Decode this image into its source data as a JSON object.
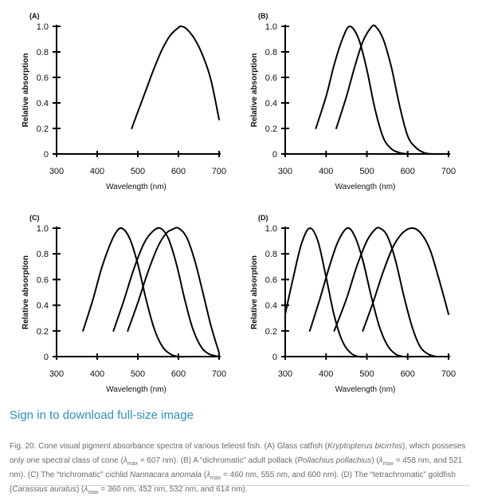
{
  "chart_data": [
    {
      "panel_label": "(A)",
      "type": "line",
      "xlabel": "Wavelength (nm)",
      "ylabel": "Relative absorption",
      "xlim": [
        300,
        700
      ],
      "ylim": [
        0,
        1.0
      ],
      "xticks": [
        "300",
        "400",
        "500",
        "600",
        "700"
      ],
      "yticks": [
        "0",
        "0.2",
        "0.4",
        "0.6",
        "0.8",
        "1.0"
      ],
      "series": [
        {
          "lambda_max": 607,
          "x": [
            485,
            500,
            520,
            540,
            560,
            580,
            600,
            607,
            620,
            640,
            660,
            680,
            700
          ],
          "y": [
            0.2,
            0.33,
            0.5,
            0.67,
            0.82,
            0.93,
            0.99,
            1.0,
            0.98,
            0.9,
            0.77,
            0.58,
            0.27
          ]
        }
      ]
    },
    {
      "panel_label": "(B)",
      "type": "line",
      "xlabel": "Wavelength (nm)",
      "ylabel": "Relative absorption",
      "xlim": [
        300,
        700
      ],
      "ylim": [
        0,
        1.0
      ],
      "xticks": [
        "300",
        "400",
        "500",
        "600",
        "700"
      ],
      "yticks": [
        "0",
        "0.2",
        "0.4",
        "0.6",
        "0.8",
        "1.0"
      ],
      "series": [
        {
          "lambda_max": 458,
          "x": [
            375,
            400,
            420,
            440,
            458,
            480,
            500,
            520,
            540,
            560,
            580,
            600
          ],
          "y": [
            0.2,
            0.45,
            0.7,
            0.9,
            1.0,
            0.9,
            0.66,
            0.35,
            0.13,
            0.04,
            0.01,
            0.0
          ]
        },
        {
          "lambda_max": 521,
          "x": [
            425,
            450,
            470,
            490,
            510,
            521,
            540,
            560,
            580,
            600,
            620,
            640,
            660,
            680
          ],
          "y": [
            0.2,
            0.45,
            0.68,
            0.88,
            0.99,
            1.0,
            0.9,
            0.68,
            0.38,
            0.14,
            0.05,
            0.01,
            0.0,
            0.0
          ]
        }
      ]
    },
    {
      "panel_label": "(C)",
      "type": "line",
      "xlabel": "Wavelength (nm)",
      "ylabel": "Relative absorption",
      "xlim": [
        300,
        700
      ],
      "ylim": [
        0,
        1.0
      ],
      "xticks": [
        "300",
        "400",
        "500",
        "600",
        "700"
      ],
      "yticks": [
        "0",
        "0.2",
        "0.4",
        "0.6",
        "0.8",
        "1.0"
      ],
      "series": [
        {
          "lambda_max": 460,
          "x": [
            365,
            390,
            410,
            430,
            445,
            460,
            480,
            500,
            520,
            540,
            560,
            580,
            600,
            620
          ],
          "y": [
            0.2,
            0.45,
            0.68,
            0.86,
            0.96,
            1.0,
            0.92,
            0.72,
            0.45,
            0.22,
            0.08,
            0.02,
            0.0,
            0.0
          ]
        },
        {
          "lambda_max": 555,
          "x": [
            440,
            465,
            490,
            515,
            535,
            555,
            575,
            595,
            615,
            635,
            655,
            675,
            700
          ],
          "y": [
            0.2,
            0.43,
            0.68,
            0.88,
            0.97,
            1.0,
            0.92,
            0.72,
            0.45,
            0.22,
            0.08,
            0.02,
            0.0
          ]
        },
        {
          "lambda_max": 600,
          "x": [
            475,
            500,
            525,
            550,
            570,
            585,
            600,
            620,
            640,
            660,
            680,
            700
          ],
          "y": [
            0.2,
            0.42,
            0.66,
            0.86,
            0.96,
            0.99,
            1.0,
            0.93,
            0.75,
            0.5,
            0.24,
            0.03
          ]
        }
      ]
    },
    {
      "panel_label": "(D)",
      "type": "line",
      "xlabel": "Wavelength (nm)",
      "ylabel": "Relative absorption",
      "xlim": [
        300,
        700
      ],
      "ylim": [
        0,
        1.0
      ],
      "xticks": [
        "300",
        "400",
        "500",
        "600",
        "700"
      ],
      "yticks": [
        "0",
        "0.2",
        "0.4",
        "0.6",
        "0.8",
        "1.0"
      ],
      "series": [
        {
          "lambda_max": 360,
          "x": [
            300,
            320,
            340,
            360,
            380,
            400,
            420,
            440,
            460,
            480,
            500
          ],
          "y": [
            0.33,
            0.62,
            0.88,
            1.0,
            0.9,
            0.62,
            0.32,
            0.12,
            0.03,
            0.0,
            0.0
          ]
        },
        {
          "lambda_max": 452,
          "x": [
            360,
            385,
            410,
            430,
            452,
            470,
            490,
            510,
            530,
            550,
            570,
            590,
            610
          ],
          "y": [
            0.2,
            0.45,
            0.72,
            0.9,
            1.0,
            0.94,
            0.75,
            0.48,
            0.24,
            0.09,
            0.02,
            0.0,
            0.0
          ]
        },
        {
          "lambda_max": 532,
          "x": [
            420,
            450,
            475,
            500,
            520,
            532,
            550,
            570,
            590,
            610,
            630,
            650,
            670
          ],
          "y": [
            0.2,
            0.45,
            0.7,
            0.9,
            0.99,
            1.0,
            0.94,
            0.75,
            0.48,
            0.24,
            0.08,
            0.02,
            0.0
          ]
        },
        {
          "lambda_max": 614,
          "x": [
            490,
            515,
            540,
            565,
            590,
            614,
            635,
            655,
            675,
            690,
            700
          ],
          "y": [
            0.2,
            0.42,
            0.66,
            0.86,
            0.97,
            1.0,
            0.95,
            0.83,
            0.62,
            0.45,
            0.33
          ]
        }
      ]
    }
  ],
  "download_link": "Sign in to download full-size image",
  "caption": {
    "prefix": "Fig. 20.",
    "p1": " Cone visual pigment absorbance spectra of various teleost fish. (A) Glass catfish (",
    "species_a": "Kryptopterus bicirrhis",
    "p2": "), which posseses only one spectral class of cone (",
    "lambda": "λ",
    "max": "max",
    "p3": " = 607 nm). (B) A “dichromatic” adult pollack (",
    "species_b": "Pollachius pollachius",
    "p4": ") (",
    "p5": " = 458 nm, and 521 nm). (C) The “trichromatic” cichlid ",
    "species_c": "Nannacara anomala",
    "p6": " (",
    "p7": " = 460 nm, 555 nm, and 600 nm). (D) The “tetrachromatic” goldfish (",
    "species_d": "Carassius auratus",
    "p8": ") (",
    "p9": " = 360 nm, 452 nm, 532 nm, and 614 nm)."
  }
}
